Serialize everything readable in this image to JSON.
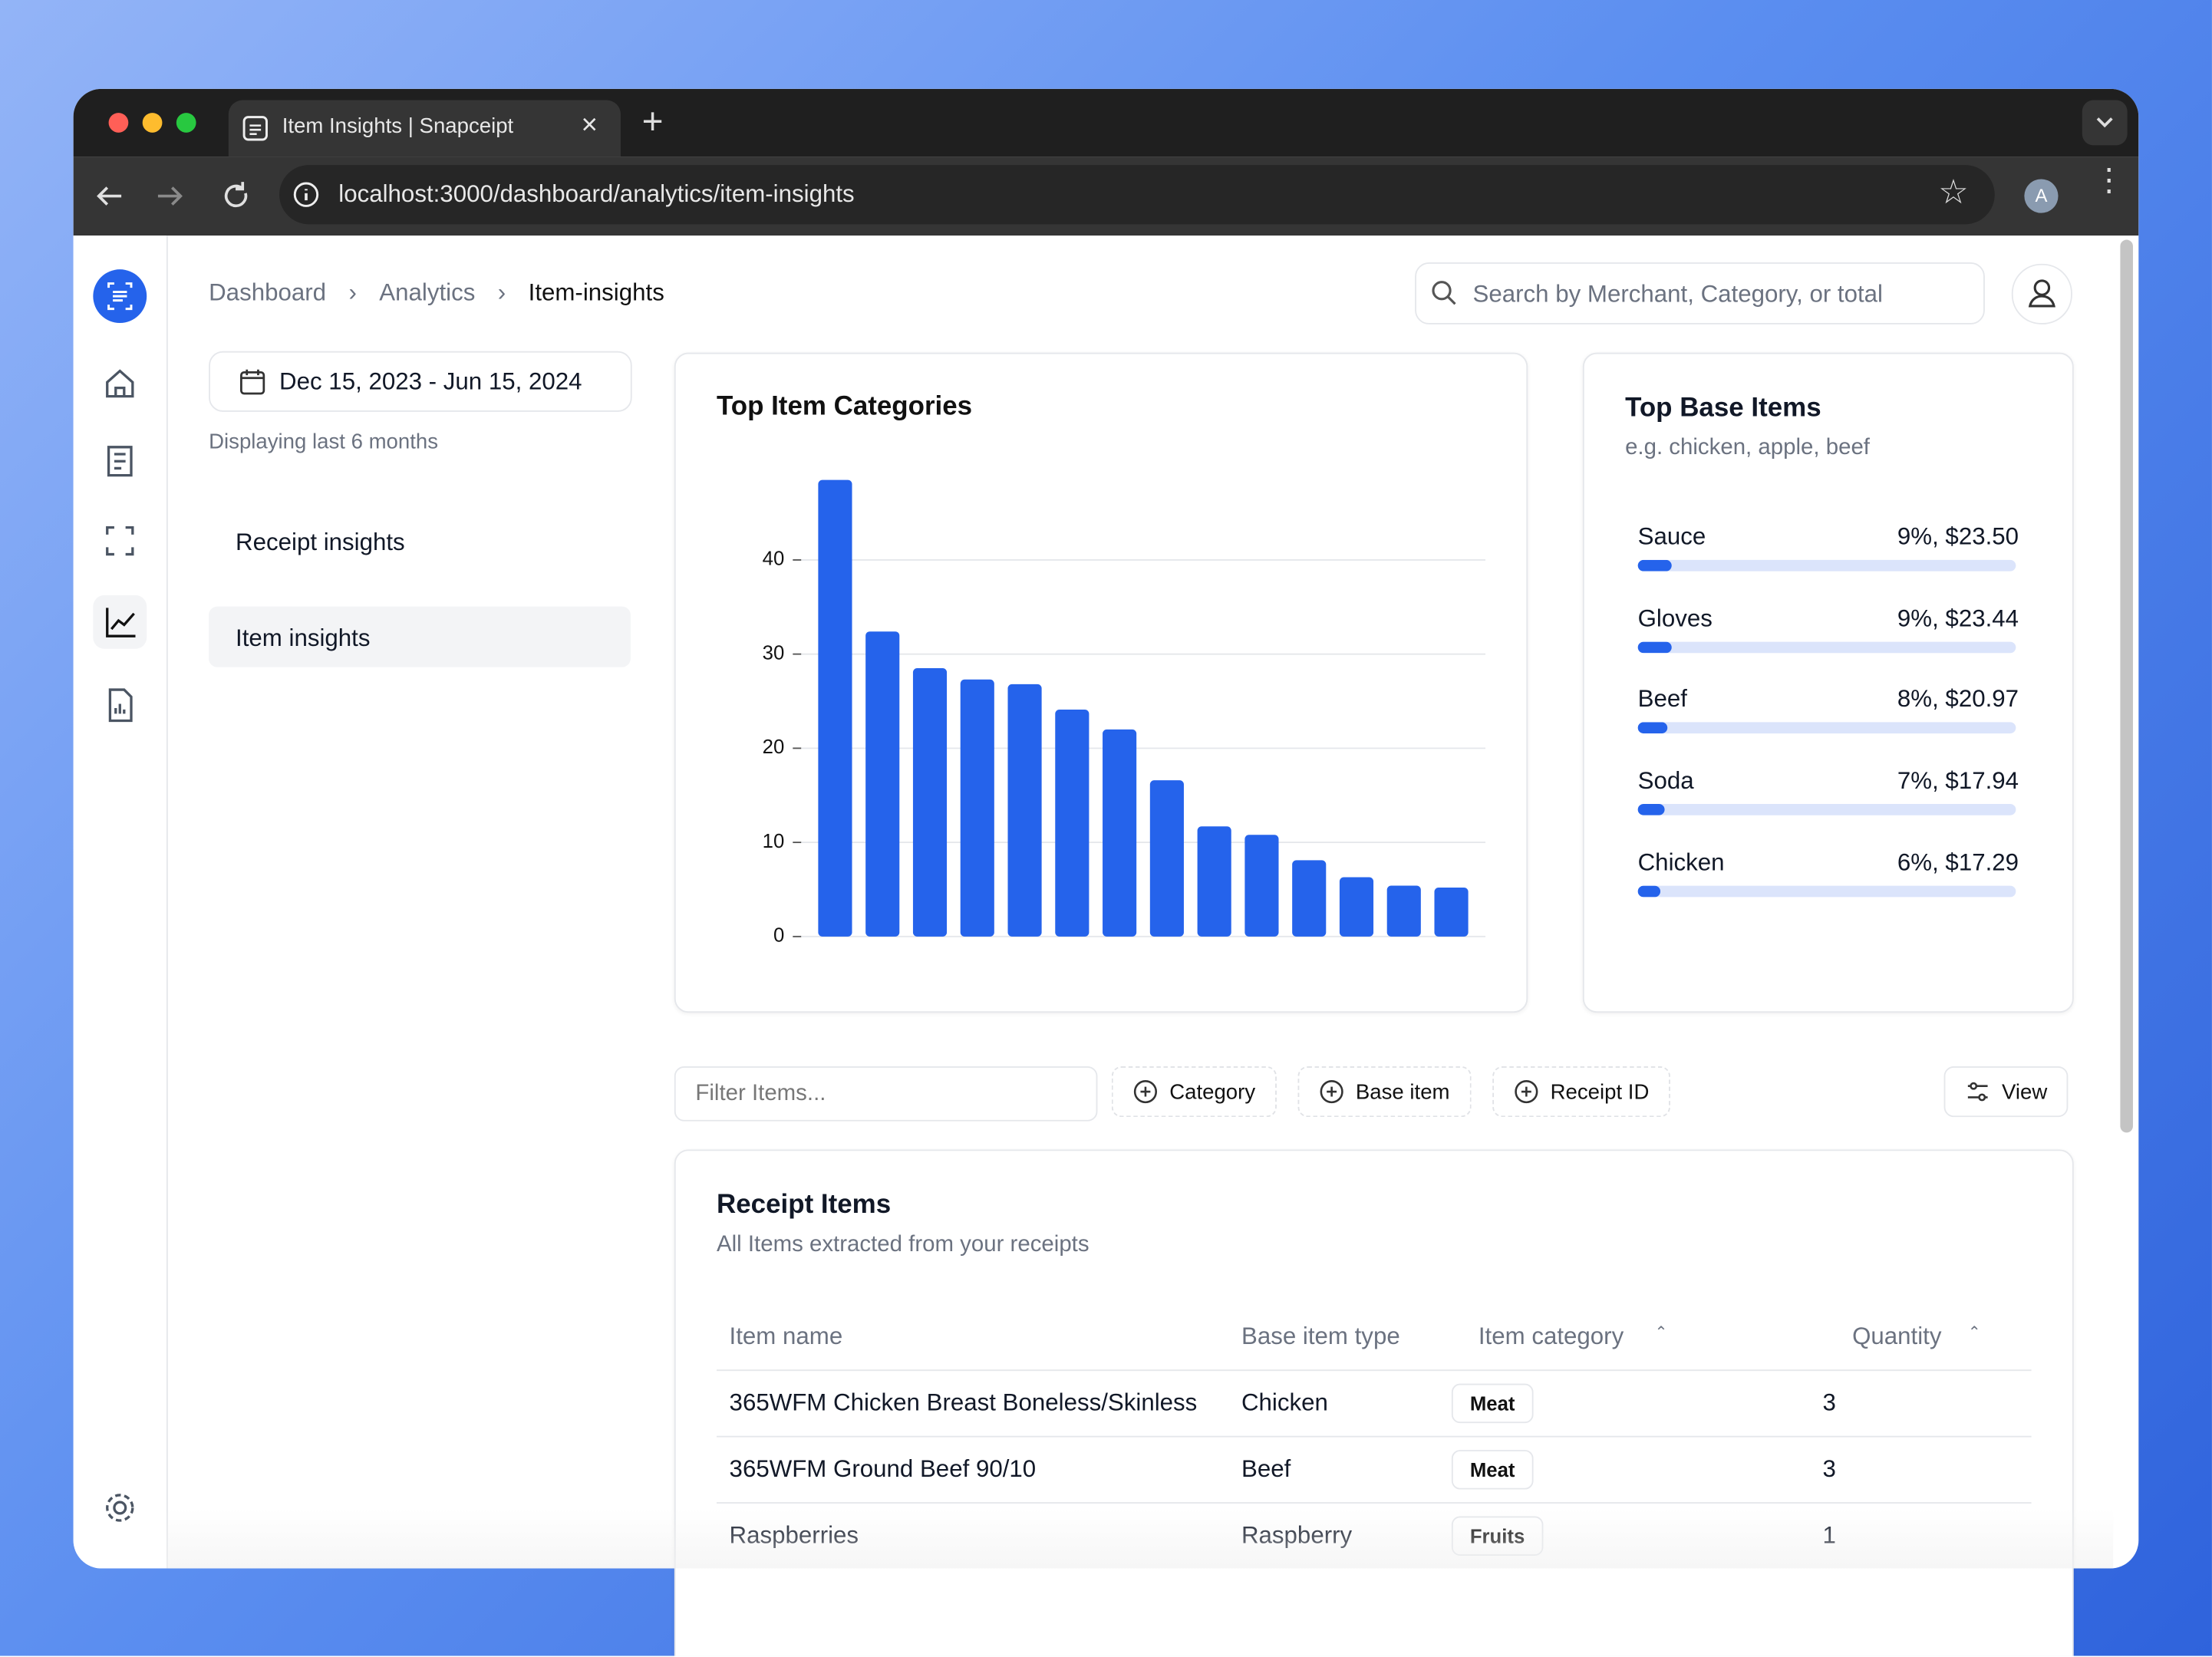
{
  "browser": {
    "tab_title": "Item Insights | Snapceipt",
    "url": "localhost:3000/dashboard/analytics/item-insights",
    "profile": "A"
  },
  "breadcrumb": [
    "Dashboard",
    "Analytics",
    "Item-insights"
  ],
  "search_placeholder": "Search by Merchant, Category, or total",
  "date_range": "Dec 15, 2023 - Jun 15, 2024",
  "date_note": "Displaying last 6 months",
  "nav": [
    "Receipt insights",
    "Item insights"
  ],
  "chart_data": {
    "type": "bar",
    "title": "Top Item Categories",
    "categories": [
      null,
      null,
      null,
      null,
      null,
      null,
      null,
      null,
      null,
      null,
      null,
      null,
      null,
      null
    ],
    "values": [
      48.5,
      32.4,
      28.5,
      27.3,
      26.8,
      24.1,
      22.0,
      16.6,
      11.7,
      10.8,
      8.1,
      6.3,
      5.4,
      5.2
    ],
    "color": "#2563eb",
    "ylim": [
      0,
      50
    ],
    "yticks": [
      0,
      10,
      20,
      30,
      40
    ],
    "grid": true
  },
  "base_items": {
    "title": "Top Base Items",
    "subtitle": "e.g. chicken, apple, beef",
    "items": [
      {
        "name": "Sauce",
        "value": 9,
        "label": "9%, $23.50"
      },
      {
        "name": "Gloves",
        "value": 9,
        "label": "9%, $23.44"
      },
      {
        "name": "Beef",
        "value": 8,
        "label": "8%, $20.97"
      },
      {
        "name": "Soda",
        "value": 7,
        "label": "7%, $17.94"
      },
      {
        "name": "Chicken",
        "value": 6,
        "label": "6%, $17.29"
      }
    ]
  },
  "filters": {
    "placeholder": "Filter Items...",
    "buttons": [
      "Category",
      "Base item",
      "Receipt ID"
    ],
    "view": "View"
  },
  "table": {
    "title": "Receipt Items",
    "subtitle": "All Items extracted from your receipts",
    "columns": [
      "Item name",
      "Base item type",
      "Item category",
      "Quantity"
    ],
    "rows": [
      [
        "365WFM Chicken Breast Boneless/Skinless",
        "Chicken",
        "Meat",
        3
      ],
      [
        "365WFM Ground Beef 90/10",
        "Beef",
        "Meat",
        3
      ],
      [
        "Raspberries",
        "Raspberry",
        "Fruits",
        1
      ]
    ]
  }
}
